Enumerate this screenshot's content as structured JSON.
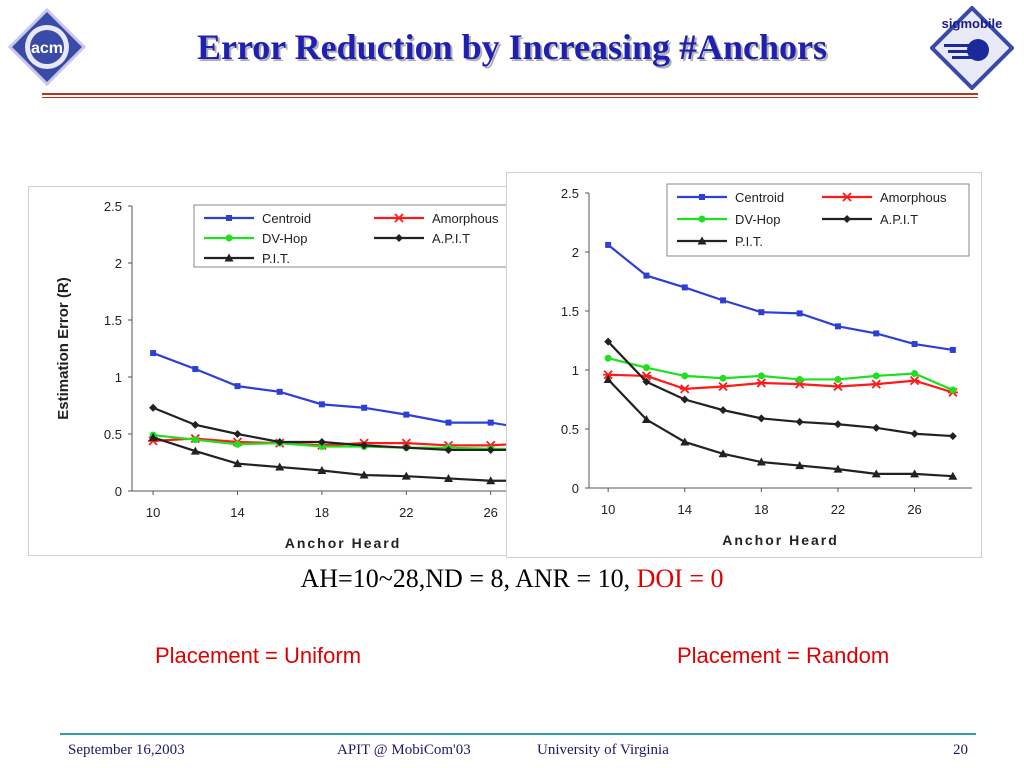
{
  "title": "Error Reduction by Increasing #Anchors",
  "logos": {
    "left": "acm",
    "right": "sigmobile"
  },
  "subtitle": {
    "main": "AH=10~28,ND = 8, ANR = 10, ",
    "doi": "DOI = 0"
  },
  "placement_left": "Placement = Uniform",
  "placement_right": "Placement = Random",
  "footer": {
    "date": "September 16,2003",
    "conference": "APIT @ MobiCom'03",
    "university": "University of Virginia",
    "page": "20"
  },
  "colors": {
    "Centroid": "#2e3fd6",
    "Amorphous": "#ff1a1a",
    "DV-Hop": "#1fe01f",
    "A.P.I.T": "#222222",
    "P.I.T.": "#222222"
  },
  "chart_data": [
    {
      "type": "line",
      "xlabel": "Anchor Heard",
      "ylabel": "Estimation Error (R)",
      "x": [
        10,
        12,
        14,
        16,
        18,
        20,
        22,
        24,
        26,
        28
      ],
      "xticks": [
        10,
        14,
        18,
        22,
        26
      ],
      "ylim": [
        0,
        2.5
      ],
      "yticks": [
        "0",
        "0.5",
        "1",
        "1.5",
        "2",
        "2.5"
      ],
      "legend": "top",
      "series": [
        {
          "name": "Centroid",
          "marker": "square",
          "values": [
            1.21,
            1.07,
            0.92,
            0.87,
            0.76,
            0.73,
            0.67,
            0.6,
            0.6,
            0.54
          ]
        },
        {
          "name": "Amorphous",
          "marker": "star",
          "values": [
            0.44,
            0.46,
            0.43,
            0.42,
            0.4,
            0.42,
            0.42,
            0.4,
            0.4,
            0.42
          ]
        },
        {
          "name": "DV-Hop",
          "marker": "circle",
          "values": [
            0.49,
            0.45,
            0.41,
            0.42,
            0.39,
            0.39,
            0.38,
            0.38,
            0.37,
            0.37
          ]
        },
        {
          "name": "A.P.I.T",
          "marker": "diamond",
          "values": [
            0.73,
            0.58,
            0.5,
            0.43,
            0.43,
            0.4,
            0.38,
            0.36,
            0.36,
            0.36
          ]
        },
        {
          "name": "P.I.T.",
          "marker": "triangle",
          "values": [
            0.47,
            0.35,
            0.24,
            0.21,
            0.18,
            0.14,
            0.13,
            0.11,
            0.09,
            0.09
          ]
        }
      ]
    },
    {
      "type": "line",
      "xlabel": "Anchor Heard",
      "ylabel": "",
      "x": [
        10,
        12,
        14,
        16,
        18,
        20,
        22,
        24,
        26,
        28
      ],
      "xticks": [
        10,
        14,
        18,
        22,
        26
      ],
      "ylim": [
        0,
        2.5
      ],
      "yticks": [
        "0",
        "0.5",
        "1",
        "1.5",
        "2",
        "2.5"
      ],
      "legend": "top",
      "series": [
        {
          "name": "Centroid",
          "marker": "square",
          "values": [
            2.06,
            1.8,
            1.7,
            1.59,
            1.49,
            1.48,
            1.37,
            1.31,
            1.22,
            1.17
          ]
        },
        {
          "name": "Amorphous",
          "marker": "star",
          "values": [
            0.96,
            0.95,
            0.84,
            0.86,
            0.89,
            0.88,
            0.86,
            0.88,
            0.91,
            0.81
          ]
        },
        {
          "name": "DV-Hop",
          "marker": "circle",
          "values": [
            1.1,
            1.02,
            0.95,
            0.93,
            0.95,
            0.92,
            0.92,
            0.95,
            0.97,
            0.83
          ]
        },
        {
          "name": "A.P.I.T",
          "marker": "diamond",
          "values": [
            1.24,
            0.9,
            0.75,
            0.66,
            0.59,
            0.56,
            0.54,
            0.51,
            0.46,
            0.44
          ]
        },
        {
          "name": "P.I.T.",
          "marker": "triangle",
          "values": [
            0.92,
            0.58,
            0.39,
            0.29,
            0.22,
            0.19,
            0.16,
            0.12,
            0.12,
            0.1
          ]
        }
      ]
    }
  ]
}
